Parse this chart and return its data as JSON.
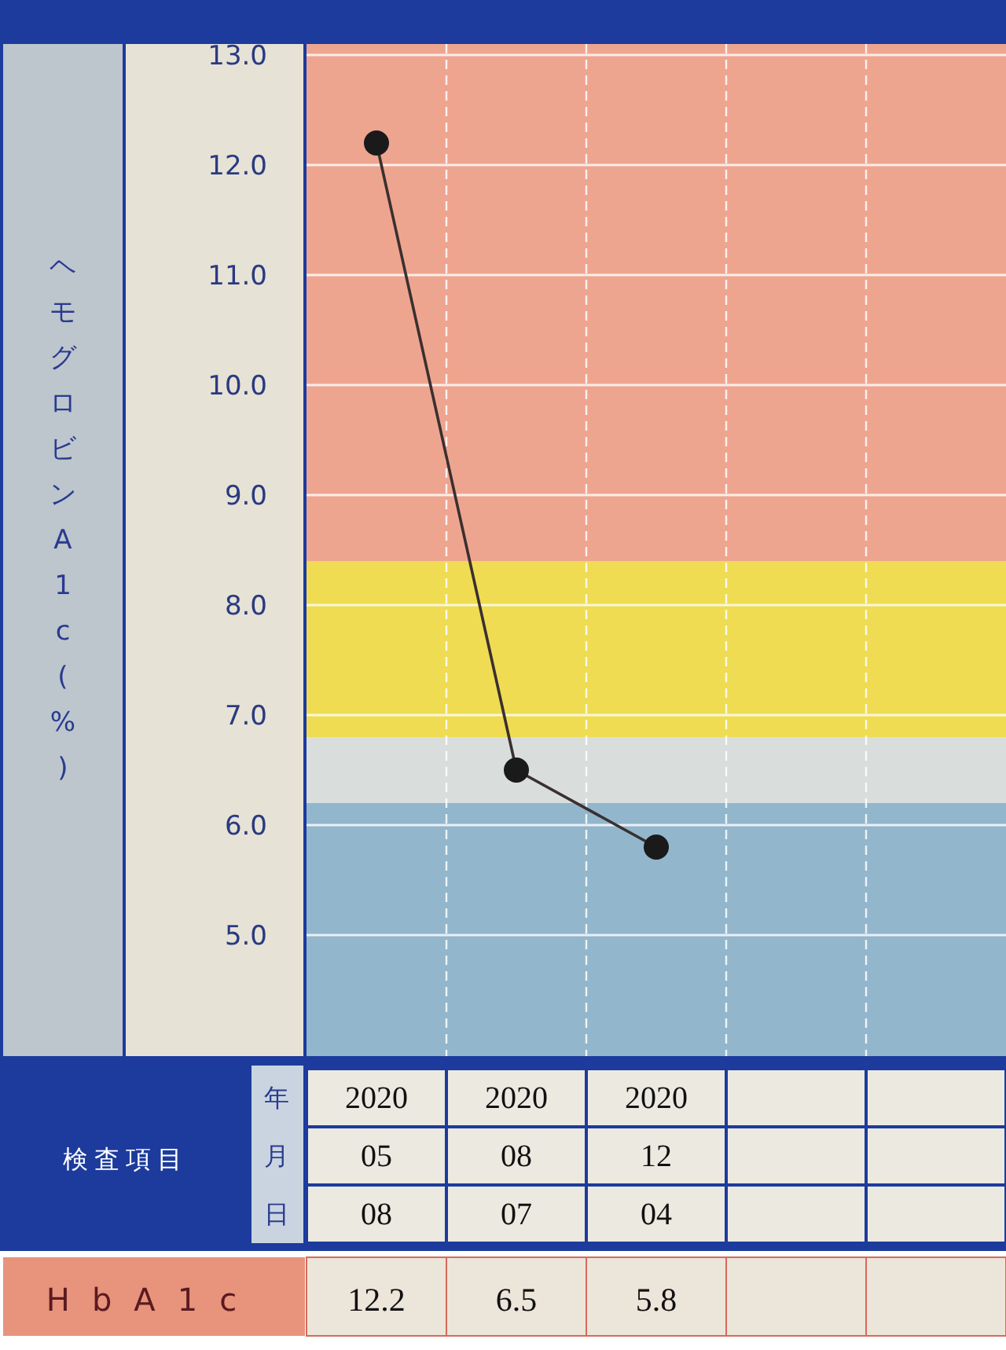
{
  "chart_data": {
    "type": "line",
    "ylabel": "ヘモグロビンA1c(%)",
    "categories": [
      "2020 05 08",
      "2020 08 07",
      "2020 12 04",
      null,
      null
    ],
    "series": [
      {
        "name": "HbA1c",
        "color": "#3a3030",
        "values": [
          12.2,
          6.5,
          5.8,
          null,
          null
        ]
      }
    ],
    "data_labels": true,
    "marker": "circle",
    "line_style": "solid",
    "grid": true,
    "ylim": [
      3.9,
      13.1
    ],
    "yticks": [
      {
        "value": 5,
        "label": "5.0"
      },
      {
        "value": 6,
        "label": "6.0"
      },
      {
        "value": 7,
        "label": "7.0"
      },
      {
        "value": 8,
        "label": "8.0"
      },
      {
        "value": 9,
        "label": "9.0"
      },
      {
        "value": 10,
        "label": "10.0"
      },
      {
        "value": 11,
        "label": "11.0"
      },
      {
        "value": 12,
        "label": "12.0"
      },
      {
        "value": 13,
        "label": "13.0"
      }
    ],
    "bands": [
      {
        "axis": "y",
        "from": 8.4,
        "to": 13.1,
        "color": "#eea58f"
      },
      {
        "axis": "y",
        "from": 6.8,
        "to": 8.4,
        "color": "#efdc52"
      },
      {
        "axis": "y",
        "from": 6.2,
        "to": 6.8,
        "color": "#d9dedd"
      },
      {
        "axis": "y",
        "from": 3.9,
        "to": 6.2,
        "color": "#92b6cc"
      }
    ],
    "annotations": [
      "検査項目",
      "年",
      "月",
      "日"
    ]
  }
}
